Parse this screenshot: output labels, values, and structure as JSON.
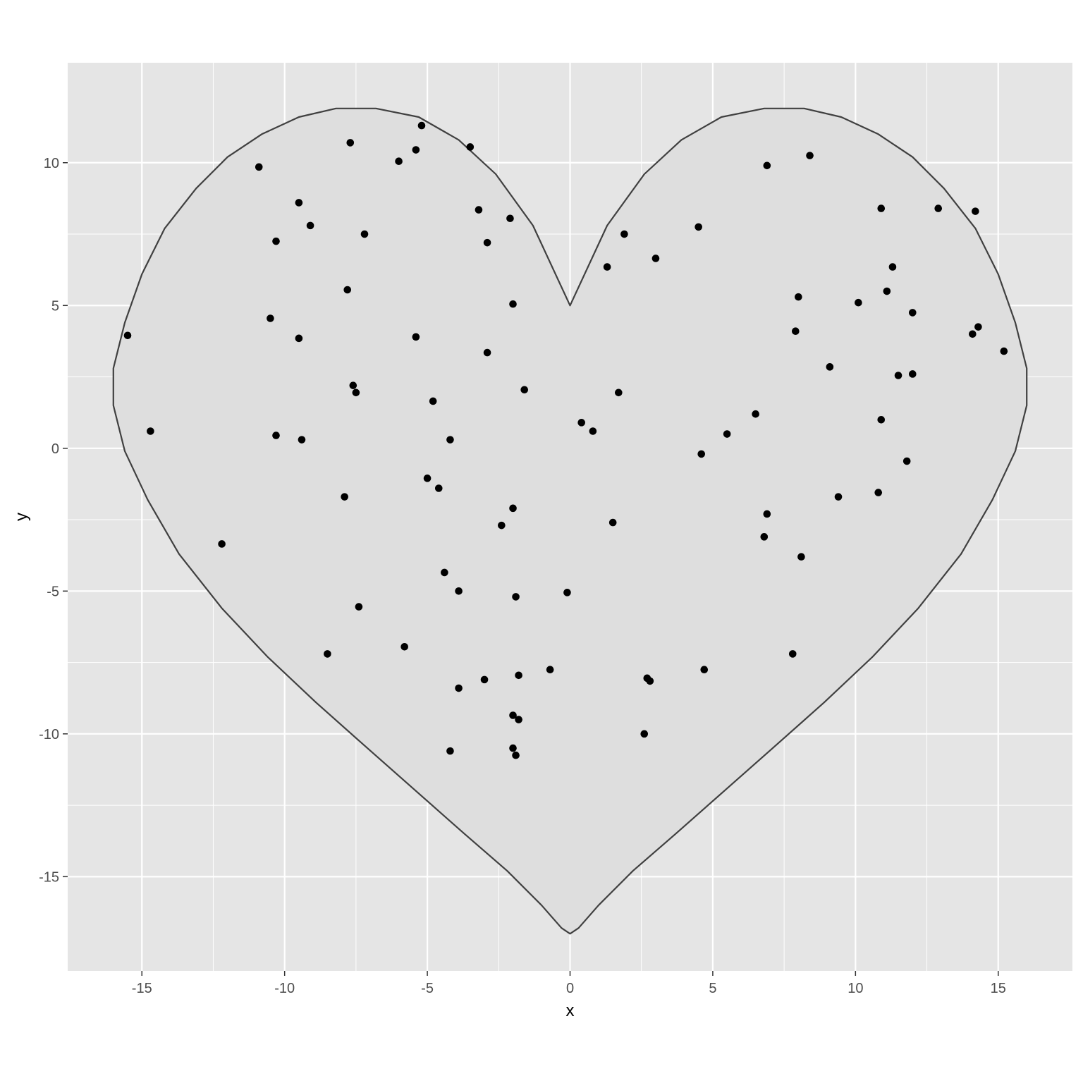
{
  "chart_data": {
    "type": "scatter",
    "title": "",
    "xlabel": "x",
    "ylabel": "y",
    "xlim": [
      -17.6,
      17.6
    ],
    "ylim": [
      -18.3,
      13.5
    ],
    "x_ticks": [
      -15,
      -10,
      -5,
      0,
      5,
      10,
      15
    ],
    "y_ticks": [
      -15,
      -10,
      -5,
      0,
      5,
      10
    ],
    "grid": true,
    "legend": "none",
    "colors": {
      "panel": "#e5e5e5",
      "grid": "#ffffff",
      "shape_fill": "#dedede",
      "shape_outline": "#404040",
      "points": "#000000"
    },
    "shape": {
      "name": "heart",
      "x": [
        0,
        1.3,
        2.6,
        3.9,
        5.3,
        6.8,
        8.2,
        9.5,
        10.8,
        12.0,
        13.1,
        14.2,
        15.0,
        15.6,
        16.0,
        16.0,
        15.6,
        14.8,
        13.7,
        12.2,
        10.6,
        8.9,
        7.1,
        5.4,
        3.7,
        2.2,
        1.0,
        0.3,
        0
      ],
      "y": [
        5,
        7.8,
        9.6,
        10.8,
        11.6,
        11.9,
        11.9,
        11.6,
        11.0,
        10.2,
        9.1,
        7.7,
        6.1,
        4.4,
        2.8,
        1.5,
        -0.1,
        -1.8,
        -3.7,
        -5.6,
        -7.3,
        -8.9,
        -10.5,
        -12.0,
        -13.5,
        -14.8,
        -16.0,
        -16.8,
        -17
      ]
    },
    "points": {
      "x": [
        -15.5,
        -14.7,
        -12.2,
        -10.9,
        -10.5,
        -10.3,
        -10.3,
        -9.5,
        -9.5,
        -9.4,
        -9.1,
        -8.5,
        -7.9,
        -7.8,
        -7.7,
        -7.6,
        -7.5,
        -7.4,
        -7.2,
        -6.0,
        -5.8,
        -5.4,
        -5.4,
        -5.2,
        -5.0,
        -4.8,
        -4.6,
        -4.4,
        -4.2,
        -4.2,
        -3.9,
        -3.9,
        -3.5,
        -3.2,
        -3.0,
        -2.9,
        -2.9,
        -2.4,
        -2.1,
        -2.0,
        -2.0,
        -2.0,
        -2.0,
        -1.9,
        -1.9,
        -1.8,
        -1.8,
        -1.6,
        -0.7,
        -0.1,
        0.4,
        0.8,
        1.3,
        1.5,
        1.7,
        1.9,
        2.6,
        2.7,
        2.8,
        3.0,
        4.5,
        4.6,
        4.7,
        5.5,
        6.5,
        6.8,
        6.9,
        6.9,
        7.8,
        7.9,
        8.0,
        8.1,
        8.4,
        9.1,
        9.4,
        10.1,
        10.8,
        10.9,
        10.9,
        11.1,
        11.3,
        11.5,
        11.8,
        12.0,
        12.0,
        12.9,
        14.1,
        14.2,
        14.3,
        15.2
      ],
      "y": [
        3.95,
        0.6,
        -3.35,
        9.85,
        4.55,
        7.25,
        0.45,
        8.6,
        3.85,
        0.3,
        7.8,
        -7.2,
        -1.7,
        5.55,
        10.7,
        2.2,
        1.95,
        -5.55,
        7.5,
        10.05,
        -6.95,
        3.9,
        10.45,
        11.3,
        -1.05,
        1.65,
        -1.4,
        -4.35,
        0.3,
        -10.6,
        -5.0,
        -8.4,
        10.55,
        8.35,
        -8.1,
        7.2,
        3.35,
        -2.7,
        8.05,
        -2.1,
        -9.35,
        -10.5,
        5.05,
        -5.2,
        -10.75,
        -7.95,
        -9.5,
        2.05,
        -7.75,
        -5.05,
        0.9,
        0.6,
        6.35,
        -2.6,
        1.95,
        7.5,
        -10.0,
        -8.05,
        -8.15,
        6.65,
        7.75,
        -0.2,
        -7.75,
        0.5,
        1.2,
        -3.1,
        -2.3,
        9.9,
        -7.2,
        4.1,
        5.3,
        -3.8,
        10.25,
        2.85,
        -1.7,
        5.1,
        -1.55,
        8.4,
        1.0,
        5.5,
        6.35,
        2.55,
        -0.45,
        4.75,
        2.6,
        8.4,
        4.0,
        8.3,
        4.25,
        3.4
      ]
    }
  }
}
